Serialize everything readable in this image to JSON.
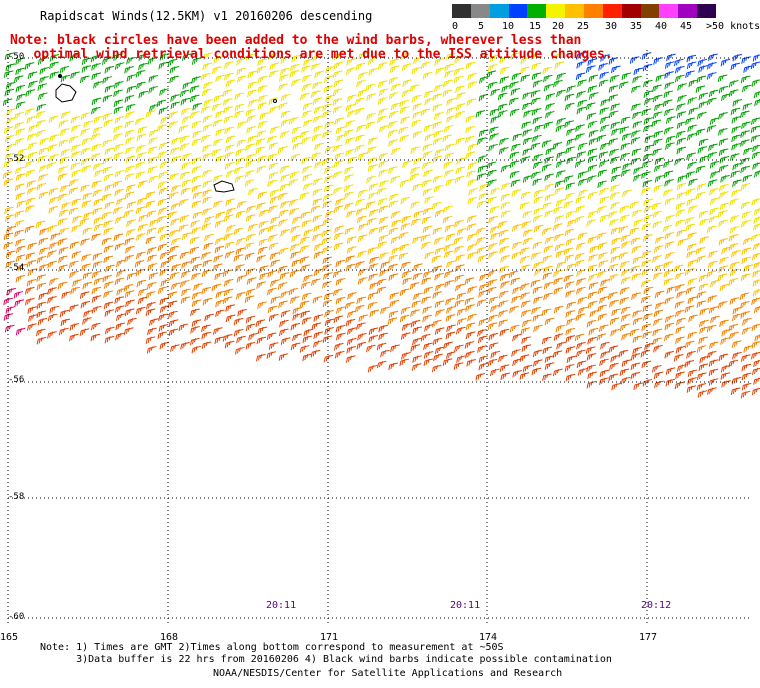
{
  "title": "Rapidscat Winds(12.5KM) v1 20160206 descending",
  "note": "Note: black circles have been added to the wind barbs, wherever less than\n   optimal wind retrieval conditions are met due to the ISS attitude changes.",
  "legend": {
    "unit_label": ">50 knots",
    "ticks": [
      "0",
      "5",
      "10",
      "15",
      "20",
      "25",
      "30",
      "35",
      "40",
      "45"
    ],
    "colors": [
      "#303030",
      "#888888",
      "#00a0e0",
      "#0040ff",
      "#00b000",
      "#f4f400",
      "#ffc000",
      "#ff8000",
      "#ff2000",
      "#a00000",
      "#804000",
      "#ff40ff",
      "#a000c0",
      "#300050"
    ]
  },
  "map": {
    "lat_labels": [
      "-50",
      "-52",
      "-54",
      "-56",
      "-58",
      "-60"
    ],
    "lon_labels": [
      "165",
      "168",
      "171",
      "174",
      "177"
    ],
    "time_labels": [
      "20:11",
      "20:11",
      "20:12"
    ]
  },
  "footnotes": "Note: 1) Times are GMT 2)Times along bottom correspond to measurement at ~50S\n      3)Data buffer is 22 hrs from 20160206 4) Black wind barbs indicate possible contamination",
  "credit": "NOAA/NESDIS/Center for Satellite Applications and Research"
}
